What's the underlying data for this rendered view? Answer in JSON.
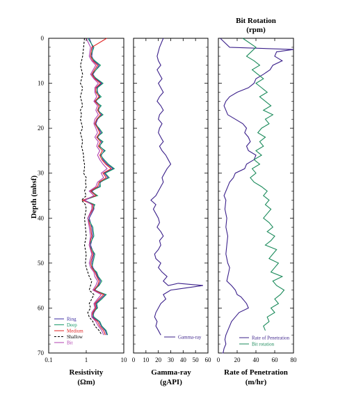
{
  "chart_data": [
    {
      "type": "line",
      "panel": "resistivity",
      "xlabel": "Resistivity",
      "xunit": "(Ωm)",
      "xscale": "log",
      "xlim": [
        0.1,
        10
      ],
      "x_ticks": [
        "0.1",
        "1",
        "10"
      ],
      "ylabel": "Depth (mbsf)",
      "ylim": [
        70,
        0
      ],
      "y_ticks": [
        "0",
        "10",
        "20",
        "30",
        "40",
        "50",
        "60",
        "70"
      ],
      "legend_position": "bottom-left",
      "series": [
        {
          "name": "Ring",
          "color": "#3a2aa0",
          "dash": "none",
          "x": [
            1.2,
            1.5,
            1.4,
            1.6,
            2.2,
            1.5,
            1.8,
            2.6,
            1.9,
            2.0,
            2.3,
            1.8,
            2.4,
            2.1,
            2.6,
            2.0,
            1.8,
            2.1,
            2.5,
            2.0,
            2.6,
            2.3,
            3.0,
            2.5,
            2.8,
            3.6,
            5.2,
            3.0,
            3.8,
            2.4,
            2.2,
            1.4,
            1.9,
            0.9,
            1.6,
            1.6,
            1.2,
            1.4,
            1.5,
            1.3,
            1.6,
            1.4,
            1.5,
            1.8,
            2.0,
            2.4,
            2.1,
            1.7,
            3.2,
            2.4,
            1.8,
            1.9,
            1.6,
            1.5,
            2.2,
            2.5,
            3.2,
            3.5
          ],
          "y": [
            0,
            2,
            4,
            5,
            6,
            8,
            9,
            10,
            11,
            12,
            13,
            14,
            15,
            16,
            17,
            18,
            19,
            20,
            21,
            22,
            23,
            24,
            25,
            26,
            27,
            28,
            29,
            30,
            31,
            32,
            33,
            34,
            35,
            36,
            37,
            38,
            40,
            42,
            44,
            46,
            48,
            50,
            51,
            52,
            53,
            54,
            55,
            56,
            57,
            58,
            59,
            60,
            61,
            62,
            63,
            64,
            65,
            66
          ]
        },
        {
          "name": "Deep",
          "color": "#1a9a6a",
          "dash": "none",
          "x": [
            1.1,
            1.6,
            1.3,
            1.7,
            2.4,
            1.4,
            1.9,
            2.8,
            2.0,
            1.9,
            2.5,
            1.7,
            2.5,
            2.0,
            2.8,
            1.9,
            1.7,
            2.2,
            2.7,
            1.9,
            2.8,
            2.2,
            3.2,
            2.4,
            3.0,
            3.9,
            5.6,
            3.2,
            4.1,
            2.3,
            2.4,
            1.3,
            2.0,
            0.85,
            1.7,
            1.5,
            1.1,
            1.5,
            1.6,
            1.2,
            1.7,
            1.5,
            1.4,
            1.9,
            2.1,
            2.6,
            2.2,
            1.6,
            3.4,
            2.6,
            1.9,
            2.0,
            1.5,
            1.6,
            2.3,
            2.6,
            3.4,
            3.7
          ],
          "y": [
            0,
            2,
            4,
            5,
            6,
            8,
            9,
            10,
            11,
            12,
            13,
            14,
            15,
            16,
            17,
            18,
            19,
            20,
            21,
            22,
            23,
            24,
            25,
            26,
            27,
            28,
            29,
            30,
            31,
            32,
            33,
            34,
            35,
            36,
            37,
            38,
            40,
            42,
            44,
            46,
            48,
            50,
            51,
            52,
            53,
            54,
            55,
            56,
            57,
            58,
            59,
            60,
            61,
            62,
            63,
            64,
            65,
            66
          ]
        },
        {
          "name": "Medium",
          "color": "#e02020",
          "dash": "none",
          "x": [
            3.5,
            1.4,
            1.3,
            1.5,
            2.0,
            1.4,
            1.7,
            2.4,
            1.8,
            1.8,
            2.2,
            1.7,
            2.2,
            2.0,
            2.4,
            1.9,
            1.7,
            2.0,
            2.3,
            1.9,
            2.4,
            2.1,
            2.7,
            2.3,
            2.6,
            3.3,
            4.6,
            2.8,
            3.4,
            2.2,
            2.0,
            1.3,
            1.8,
            0.8,
            1.5,
            1.5,
            1.1,
            1.3,
            1.4,
            1.2,
            1.5,
            1.3,
            1.4,
            1.7,
            1.9,
            2.2,
            2.0,
            1.6,
            2.9,
            2.2,
            1.7,
            1.8,
            1.5,
            1.4,
            2.0,
            2.3,
            2.9,
            3.2
          ],
          "y": [
            0,
            2,
            4,
            5,
            6,
            8,
            9,
            10,
            11,
            12,
            13,
            14,
            15,
            16,
            17,
            18,
            19,
            20,
            21,
            22,
            23,
            24,
            25,
            26,
            27,
            28,
            29,
            30,
            31,
            32,
            33,
            34,
            35,
            36,
            37,
            38,
            40,
            42,
            44,
            46,
            48,
            50,
            51,
            52,
            53,
            54,
            55,
            56,
            57,
            58,
            59,
            60,
            61,
            62,
            63,
            64,
            65,
            66
          ]
        },
        {
          "name": "Shallow",
          "color": "#000000",
          "dash": "3,2",
          "x": [
            0.9,
            0.85,
            0.8,
            0.75,
            0.7,
            0.8,
            0.75,
            0.7,
            0.8,
            0.75,
            0.7,
            0.75,
            0.8,
            0.7,
            0.75,
            0.7,
            0.75,
            0.8,
            0.7,
            0.75,
            0.8,
            0.75,
            0.8,
            0.85,
            0.85,
            0.9,
            0.9,
            0.85,
            1.0,
            0.95,
            1.0,
            0.9,
            1.0,
            0.75,
            0.95,
            1.0,
            0.9,
            0.95,
            1.0,
            0.9,
            1.0,
            0.95,
            1.0,
            1.1,
            1.2,
            1.4,
            1.3,
            1.2,
            1.6,
            1.4,
            1.2,
            1.3,
            1.1,
            1.2,
            1.5,
            1.7,
            2.2,
            2.6
          ],
          "y": [
            0,
            2,
            4,
            5,
            6,
            8,
            9,
            10,
            11,
            12,
            13,
            14,
            15,
            16,
            17,
            18,
            19,
            20,
            21,
            22,
            23,
            24,
            25,
            26,
            27,
            28,
            29,
            30,
            31,
            32,
            33,
            34,
            35,
            36,
            37,
            38,
            40,
            42,
            44,
            46,
            48,
            50,
            51,
            52,
            53,
            54,
            55,
            56,
            57,
            58,
            59,
            60,
            61,
            62,
            63,
            64,
            65,
            66
          ]
        },
        {
          "name": "Bit",
          "color": "#b040b0",
          "dash": "none",
          "x": [
            1.0,
            1.3,
            1.2,
            1.4,
            1.8,
            1.3,
            1.6,
            2.1,
            1.7,
            1.7,
            1.9,
            1.6,
            2.0,
            1.8,
            2.1,
            1.7,
            1.6,
            1.8,
            2.0,
            1.7,
            2.1,
            1.9,
            2.3,
            2.0,
            2.3,
            2.8,
            3.6,
            2.5,
            2.9,
            2.0,
            1.8,
            1.2,
            1.6,
            0.9,
            1.4,
            1.4,
            1.1,
            1.2,
            1.3,
            1.2,
            1.4,
            1.2,
            1.3,
            1.6,
            1.7,
            2.0,
            1.8,
            1.5,
            2.5,
            2.0,
            1.6,
            1.7,
            1.4,
            1.4,
            1.8,
            2.1,
            2.6,
            2.9
          ],
          "y": [
            0,
            2,
            4,
            5,
            6,
            8,
            9,
            10,
            11,
            12,
            13,
            14,
            15,
            16,
            17,
            18,
            19,
            20,
            21,
            22,
            23,
            24,
            25,
            26,
            27,
            28,
            29,
            30,
            31,
            32,
            33,
            34,
            35,
            36,
            37,
            38,
            40,
            42,
            44,
            46,
            48,
            50,
            51,
            52,
            53,
            54,
            55,
            56,
            57,
            58,
            59,
            60,
            61,
            62,
            63,
            64,
            65,
            66
          ]
        }
      ]
    },
    {
      "type": "line",
      "panel": "gamma",
      "xlabel": "Gamma-ray",
      "xunit": "(gAPI)",
      "xlim": [
        0,
        60
      ],
      "x_ticks": [
        "0",
        "10",
        "20",
        "30",
        "40",
        "50",
        "60"
      ],
      "ylim": [
        70,
        0
      ],
      "legend_position": "bottom-right",
      "series": [
        {
          "name": "Gamma-ray",
          "color": "#3a1f8a",
          "dash": "none",
          "x": [
            24,
            21,
            19,
            20,
            22,
            19,
            21,
            23,
            20,
            22,
            24,
            21,
            19,
            22,
            24,
            21,
            20,
            23,
            21,
            20,
            22,
            24,
            21,
            23,
            26,
            28,
            30,
            27,
            25,
            23,
            24,
            22,
            20,
            18,
            14,
            18,
            16,
            18,
            20,
            21,
            19,
            22,
            24,
            21,
            22,
            20,
            17,
            18,
            22,
            20,
            23,
            27,
            24,
            28,
            36,
            56,
            30,
            24,
            26,
            22,
            20,
            18,
            17,
            19,
            18,
            20,
            22
          ],
          "y": [
            0,
            2,
            4,
            5,
            6,
            7,
            8,
            9,
            10,
            11,
            12,
            13,
            14,
            15,
            16,
            17,
            18,
            19,
            20,
            21,
            22,
            23,
            24,
            25,
            26,
            27,
            28,
            29,
            30,
            31,
            32,
            33,
            34,
            35,
            36,
            37,
            38,
            39,
            40,
            41,
            42,
            43,
            44,
            45,
            46,
            47,
            48,
            49,
            50,
            51,
            52,
            53,
            54,
            55,
            54.5,
            55,
            56,
            57,
            58,
            59,
            60,
            61,
            62,
            63,
            64,
            65,
            66
          ]
        }
      ]
    },
    {
      "type": "line",
      "panel": "rop",
      "xlabel": "Rate of Penetration",
      "xunit": "(m/hr)",
      "top_label": "Bit Rotation",
      "top_unit": "(rpm)",
      "xlim": [
        0,
        80
      ],
      "x_ticks": [
        "0",
        "20",
        "40",
        "60",
        "80"
      ],
      "ylim": [
        70,
        0
      ],
      "legend_position": "bottom-right",
      "series": [
        {
          "name": "Rate of Penetration",
          "color": "#3a1f8a",
          "dash": "none",
          "x": [
            2,
            12,
            80,
            62,
            60,
            68,
            58,
            55,
            48,
            40,
            38,
            32,
            20,
            12,
            8,
            6,
            8,
            10,
            18,
            26,
            30,
            28,
            32,
            34,
            30,
            32,
            40,
            38,
            30,
            28,
            18,
            16,
            12,
            10,
            8,
            6,
            8,
            7,
            9,
            8,
            10,
            9,
            8,
            10,
            12,
            11,
            10,
            9,
            14,
            18,
            20,
            24,
            26,
            28,
            30,
            32,
            22,
            18,
            14,
            12,
            10,
            8,
            7,
            8,
            6,
            5,
            4
          ],
          "y": [
            0,
            2,
            2.5,
            3,
            4,
            5,
            6,
            7,
            8,
            9,
            10,
            11,
            12,
            13,
            14,
            15,
            16,
            17,
            18,
            19,
            20,
            21,
            22,
            23,
            24,
            25,
            26,
            27,
            28,
            29,
            30,
            31,
            32,
            33,
            34,
            35,
            36,
            38,
            40,
            42,
            44,
            46,
            48,
            50,
            51,
            52,
            53,
            54,
            55,
            56,
            57,
            57.5,
            58,
            58.5,
            59,
            60,
            61,
            62,
            63,
            64,
            65,
            66,
            67,
            68,
            69,
            70,
            70
          ]
        },
        {
          "name": "Bit rotation",
          "color": "#1a8a5a",
          "dash": "none",
          "x": [
            26,
            40,
            30,
            38,
            44,
            36,
            42,
            48,
            40,
            46,
            52,
            44,
            50,
            56,
            48,
            58,
            50,
            54,
            46,
            42,
            50,
            44,
            48,
            40,
            46,
            38,
            44,
            36,
            40,
            34,
            38,
            46,
            52,
            48,
            54,
            50,
            56,
            52,
            48,
            54,
            58,
            52,
            60,
            56,
            50,
            62,
            58,
            54,
            64,
            60,
            56,
            68,
            58,
            62,
            70,
            66,
            60,
            64,
            56,
            60,
            52,
            54,
            48,
            50
          ],
          "y": [
            0,
            2,
            4,
            5,
            6,
            7,
            8,
            9,
            10,
            11,
            12,
            13,
            14,
            15,
            16,
            17,
            18,
            19,
            20,
            21,
            22,
            23,
            24,
            25,
            26,
            27,
            28,
            29,
            30,
            31,
            32,
            33,
            34,
            35,
            36,
            37,
            38,
            39,
            40,
            41,
            42,
            43,
            44,
            45,
            46,
            47,
            48,
            49,
            50,
            51,
            52,
            53,
            54,
            55,
            56,
            57,
            58,
            59,
            60,
            61,
            62,
            63,
            64,
            65
          ]
        }
      ]
    }
  ]
}
